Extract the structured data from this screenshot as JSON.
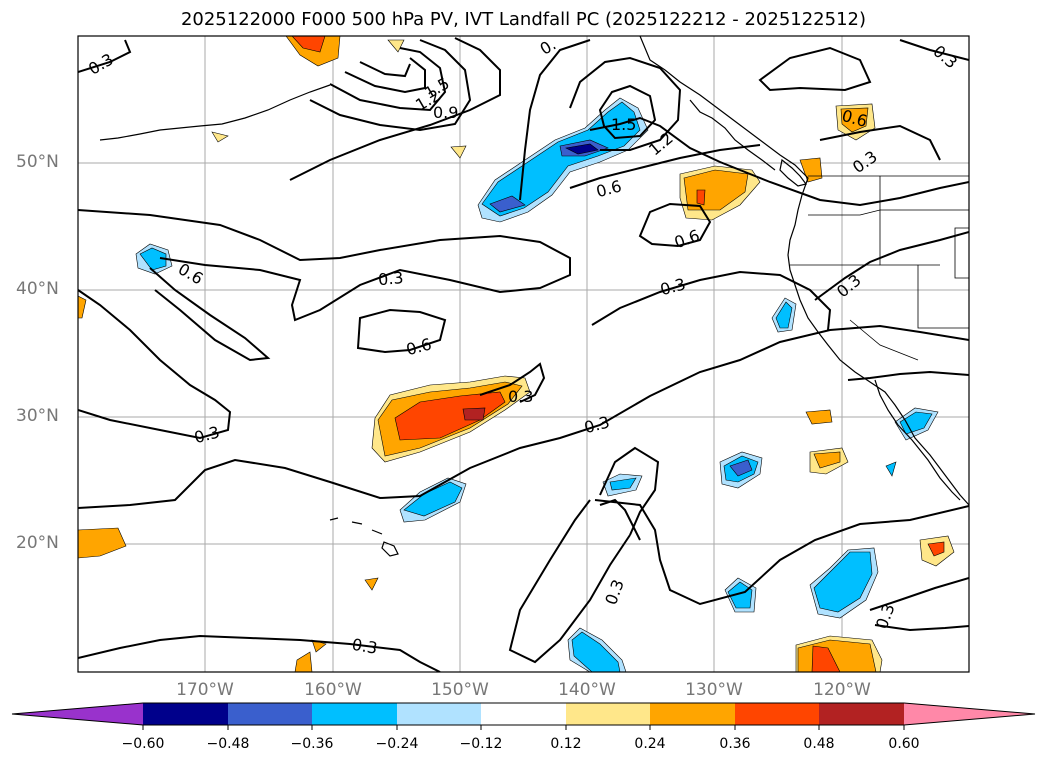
{
  "title": "2025122000 F000 500 hPa PV, IVT Landfall PC (2025122212 - 2025122512)",
  "lat_labels": [
    "50°N",
    "40°N",
    "30°N",
    "20°N"
  ],
  "lon_labels": [
    "170°W",
    "160°W",
    "150°W",
    "140°W",
    "130°W",
    "120°W"
  ],
  "contour_labels": {
    "c1": "0.3",
    "c2": "1.5",
    "c3": "1.2",
    "c4": "0.9",
    "c5": "0.",
    "c6": "1.5",
    "c7": "1.2",
    "c8": "0.6",
    "c9": "0.3",
    "c10": "0.6",
    "c11": "0.3",
    "c12": "0.6",
    "c13": "0.6",
    "c14": "0.3",
    "c15": "0.3",
    "c16": "0.3",
    "c17": "0.6",
    "c18": "0.3",
    "c19": "0.3",
    "c20": "0.3",
    "c21": "0.3",
    "c22": "0.3",
    "c23": "0.3",
    "c24": "0.3"
  },
  "colorbar": {
    "labels": [
      "−0.60",
      "−0.48",
      "−0.36",
      "−0.24",
      "−0.12",
      "0.12",
      "0.24",
      "0.36",
      "0.48",
      "0.60"
    ],
    "colors": [
      "#9932cc",
      "#00008b",
      "#3a5fcd",
      "#00bfff",
      "#b0e2ff",
      "#ffffff",
      "#ffe78a",
      "#ffa500",
      "#ff4500",
      "#b22222",
      "#ff88a8"
    ]
  },
  "palette": {
    "neg1": "#b0e2ff",
    "neg2": "#00bfff",
    "neg3": "#3a5fcd",
    "neg4": "#00008b",
    "pos1": "#ffe78a",
    "pos2": "#ffa500",
    "pos3": "#ff4500",
    "pos4": "#b22222"
  }
}
